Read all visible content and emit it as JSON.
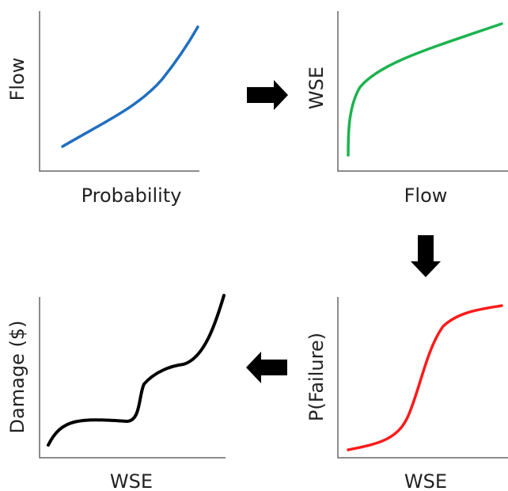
{
  "panels": [
    {
      "id": "flow-vs-probability",
      "xlabel": "Probability",
      "ylabel": "Flow",
      "curve_color": "#1f6fbf"
    },
    {
      "id": "wse-vs-flow",
      "xlabel": "Flow",
      "ylabel": "WSE",
      "curve_color": "#1db34f"
    },
    {
      "id": "pfailure-vs-wse",
      "xlabel": "WSE",
      "ylabel": "P(Failure)",
      "curve_color": "#ff1a1a"
    },
    {
      "id": "damage-vs-wse",
      "xlabel": "WSE",
      "ylabel": "Damage ($)",
      "curve_color": "#000000"
    }
  ],
  "arrows": [
    {
      "direction": "right",
      "from": "flow-vs-probability",
      "to": "wse-vs-flow"
    },
    {
      "direction": "down",
      "from": "wse-vs-flow",
      "to": "pfailure-vs-wse"
    },
    {
      "direction": "left",
      "from": "pfailure-vs-wse",
      "to": "damage-vs-wse"
    }
  ],
  "colors": {
    "axis": "#666666",
    "arrow": "#000000"
  }
}
